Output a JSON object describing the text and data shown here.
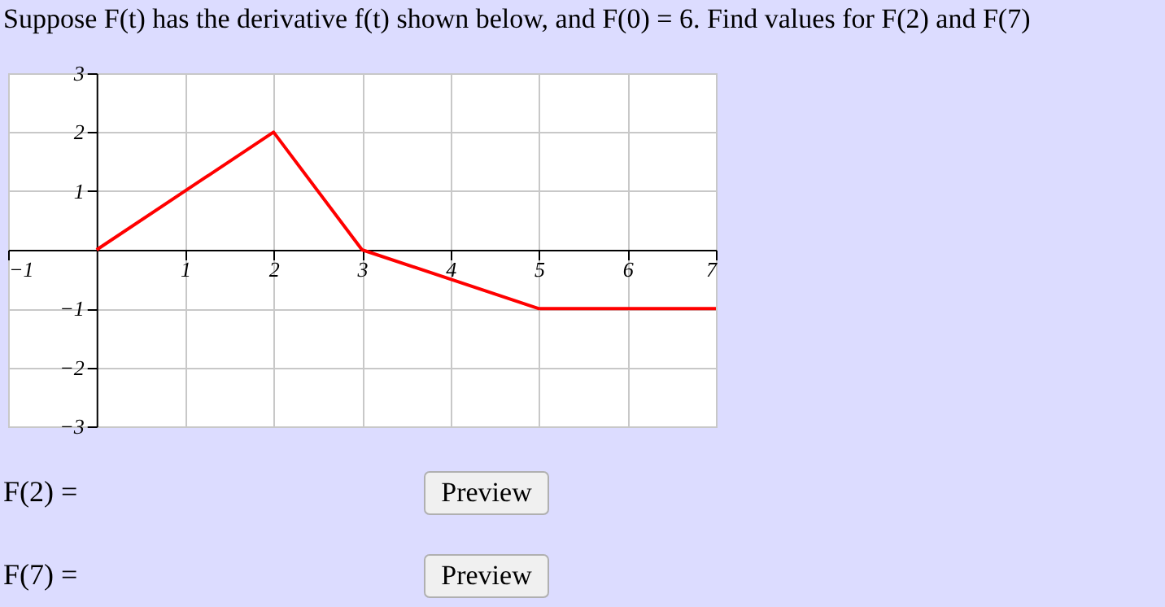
{
  "chart_data": {
    "type": "line",
    "title": "Suppose F(t) has the derivative f(t) shown below, and F(0) = 6. Find values for F(2) and F(7)",
    "x": [
      0,
      2,
      3,
      5,
      7
    ],
    "series": [
      {
        "color": "#ff0000",
        "values": [
          0,
          2,
          0,
          -1,
          -1
        ]
      }
    ],
    "xlim": [
      -1,
      7
    ],
    "ylim": [
      -3,
      3
    ],
    "xticks": [
      -1,
      1,
      2,
      3,
      4,
      5,
      6,
      7
    ],
    "yticks": [
      -3,
      -2,
      -1,
      1,
      2,
      3
    ],
    "grid": true,
    "marker": "none",
    "line_style": "solid",
    "annotations": [
      "F(2) =",
      "Preview",
      "F(7) =",
      "Preview"
    ]
  }
}
